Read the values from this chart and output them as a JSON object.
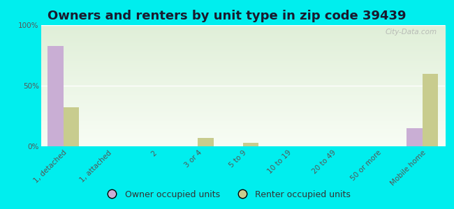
{
  "title": "Owners and renters by unit type in zip code 39439",
  "categories": [
    "1, detached",
    "1, attached",
    "2",
    "3 or 4",
    "5 to 9",
    "10 to 19",
    "20 to 49",
    "50 or more",
    "Mobile home"
  ],
  "owner_values": [
    83,
    0,
    0,
    0,
    0,
    0,
    0,
    0,
    15
  ],
  "renter_values": [
    32,
    0,
    0,
    7,
    3,
    0,
    0,
    0,
    60
  ],
  "owner_color": "#c9aed4",
  "renter_color": "#c8cc8e",
  "background_color": "#00eeee",
  "ylim": [
    0,
    100
  ],
  "yticks": [
    0,
    50,
    100
  ],
  "ytick_labels": [
    "0%",
    "50%",
    "100%"
  ],
  "bar_width": 0.35,
  "legend_owner": "Owner occupied units",
  "legend_renter": "Renter occupied units",
  "watermark": "City-Data.com",
  "title_fontsize": 13,
  "axis_fontsize": 7.5,
  "legend_fontsize": 9
}
